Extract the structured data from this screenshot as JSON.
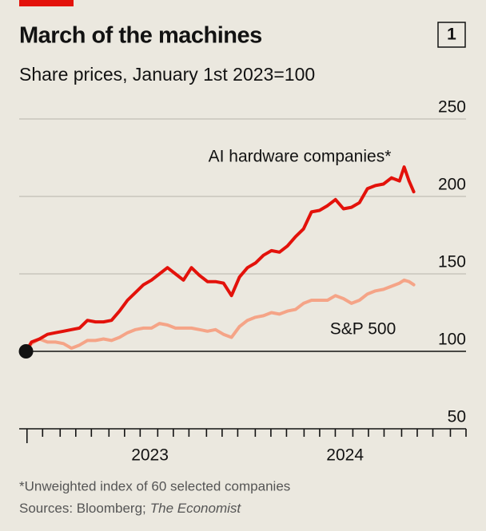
{
  "chart_data": {
    "type": "line",
    "title": "March of the machines",
    "chart_number": "1",
    "subtitle": "Share prices, January 1st 2023=100",
    "footnote": "*Unweighted index of 60 selected companies",
    "source": "Sources: Bloomberg;",
    "source_italic": "The Economist",
    "x": [
      2022.865,
      2022.893,
      2022.934,
      2022.975,
      2023.016,
      2023.057,
      2023.098,
      2023.139,
      2023.18,
      2023.221,
      2023.262,
      2023.303,
      2023.344,
      2023.385,
      2023.426,
      2023.467,
      2023.508,
      2023.549,
      2023.59,
      2023.631,
      2023.672,
      2023.713,
      2023.754,
      2023.795,
      2023.836,
      2023.877,
      2023.918,
      2023.959,
      2024.0,
      2024.041,
      2024.082,
      2024.123,
      2024.164,
      2024.205,
      2024.246,
      2024.287,
      2024.328,
      2024.369,
      2024.41,
      2024.451,
      2024.492,
      2024.533,
      2024.574,
      2024.615,
      2024.656,
      2024.697,
      2024.738,
      2024.779,
      2024.803,
      2024.828,
      2024.852
    ],
    "series": [
      {
        "name": "AI hardware companies*",
        "color": "#e3120b",
        "values": [
          100,
          106,
          108,
          111,
          112,
          113,
          114,
          115,
          120,
          119,
          119,
          120,
          126,
          133,
          138,
          143,
          146,
          150,
          154,
          150,
          146,
          154,
          149,
          145,
          145,
          144,
          136,
          148,
          154,
          157,
          162,
          165,
          164,
          168,
          174,
          179,
          190,
          191,
          194,
          198,
          192,
          193,
          196,
          205,
          207,
          208,
          212,
          210,
          219,
          210,
          203
        ]
      },
      {
        "name": "S&P 500",
        "color": "#f5a487",
        "values": [
          100,
          105,
          108,
          106,
          106,
          105,
          102,
          104,
          107,
          107,
          108,
          107,
          109,
          112,
          114,
          115,
          115,
          118,
          117,
          115,
          115,
          115,
          114,
          113,
          114,
          111,
          109,
          116,
          120,
          122,
          123,
          125,
          124,
          126,
          127,
          131,
          133,
          133,
          133,
          136,
          134,
          131,
          133,
          137,
          139,
          140,
          142,
          144,
          146,
          145,
          143
        ]
      }
    ],
    "xlim": [
      2022.83,
      2025.12
    ],
    "xticks": [
      {
        "value": 2023.5,
        "label": "2023"
      },
      {
        "value": 2024.5,
        "label": "2024"
      }
    ],
    "xminorticks": [
      2022.87,
      2022.95,
      2023.04,
      2023.12,
      2023.2,
      2023.29,
      2023.37,
      2023.45,
      2023.54,
      2023.62,
      2023.7,
      2023.79,
      2023.87,
      2023.95,
      2024.04,
      2024.12,
      2024.2,
      2024.29,
      2024.37,
      2024.45,
      2024.54,
      2024.62,
      2024.7,
      2024.79,
      2024.87,
      2024.95,
      2025.04,
      2025.12
    ],
    "ylim": [
      50,
      250
    ],
    "yticks": [
      50,
      100,
      150,
      200,
      250
    ],
    "baseline": 100,
    "grid": true
  }
}
